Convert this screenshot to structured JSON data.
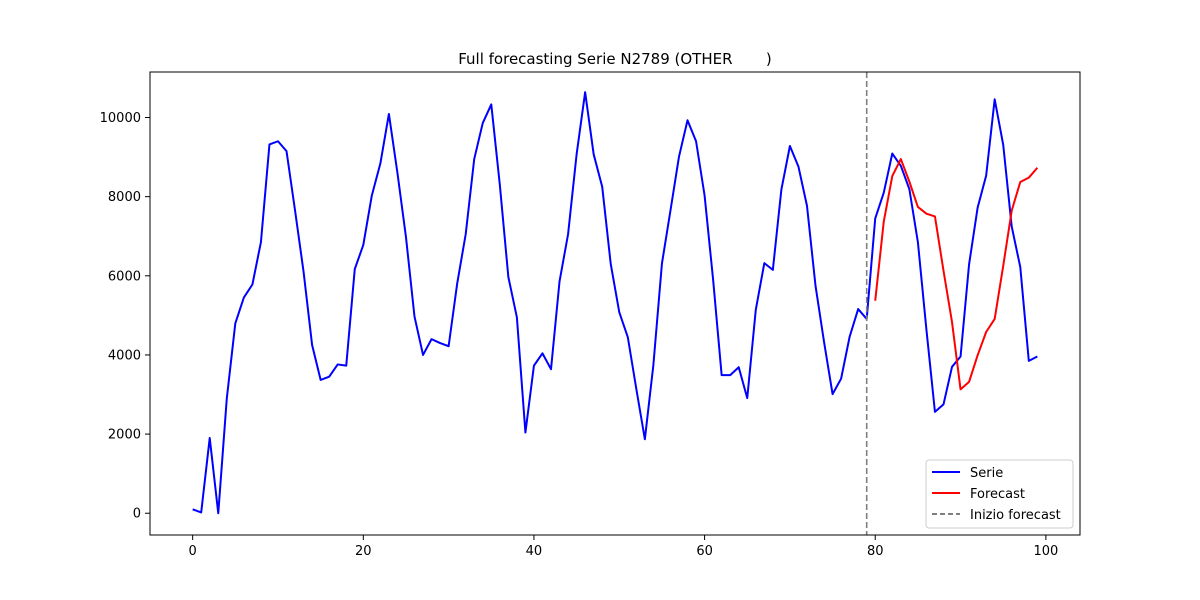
{
  "chart_data": {
    "type": "line",
    "title": "Full forecasting Serie N2789 (OTHER       )",
    "xlabel": "",
    "ylabel": "",
    "xlim": [
      -5,
      104
    ],
    "ylim": [
      -550,
      11150
    ],
    "x_ticks": [
      0,
      20,
      40,
      60,
      80,
      100
    ],
    "y_ticks": [
      0,
      2000,
      4000,
      6000,
      8000,
      10000
    ],
    "grid": false,
    "legend_position": "lower-right",
    "series": [
      {
        "name": "Serie",
        "color": "#0000ff",
        "x_start": 0,
        "values": [
          100,
          20,
          1900,
          0,
          2900,
          4800,
          5450,
          5780,
          6850,
          9320,
          9400,
          9150,
          7650,
          6100,
          4250,
          3370,
          3450,
          3760,
          3730,
          6170,
          6780,
          8030,
          8840,
          10090,
          8600,
          6980,
          4970,
          4000,
          4400,
          4300,
          4220,
          5800,
          7050,
          8950,
          9860,
          10330,
          8300,
          5970,
          4950,
          2040,
          3730,
          4040,
          3640,
          5860,
          7050,
          9070,
          10640,
          9070,
          8250,
          6300,
          5080,
          4450,
          3140,
          1870,
          3750,
          6310,
          7650,
          9010,
          9930,
          9400,
          8030,
          5900,
          3490,
          3490,
          3690,
          2910,
          5140,
          6320,
          6150,
          8180,
          9280,
          8760,
          7770,
          5750,
          4330,
          3010,
          3400,
          4460,
          5160,
          4910,
          7450,
          8100,
          9090,
          8780,
          8190,
          6850,
          4640,
          2560,
          2750,
          3700,
          3960,
          6290,
          7720,
          8530,
          10460,
          9310,
          7240,
          6220,
          3850,
          3960
        ]
      },
      {
        "name": "Forecast",
        "color": "#ff0000",
        "x_start": 80,
        "values": [
          5370,
          7370,
          8520,
          8950,
          8380,
          7740,
          7570,
          7500,
          6130,
          4830,
          3130,
          3320,
          3990,
          4580,
          4910,
          6250,
          7650,
          8370,
          8480,
          8730
        ]
      }
    ],
    "vline": {
      "name": "Inizio forecast",
      "x": 79,
      "color": "#808080"
    }
  }
}
